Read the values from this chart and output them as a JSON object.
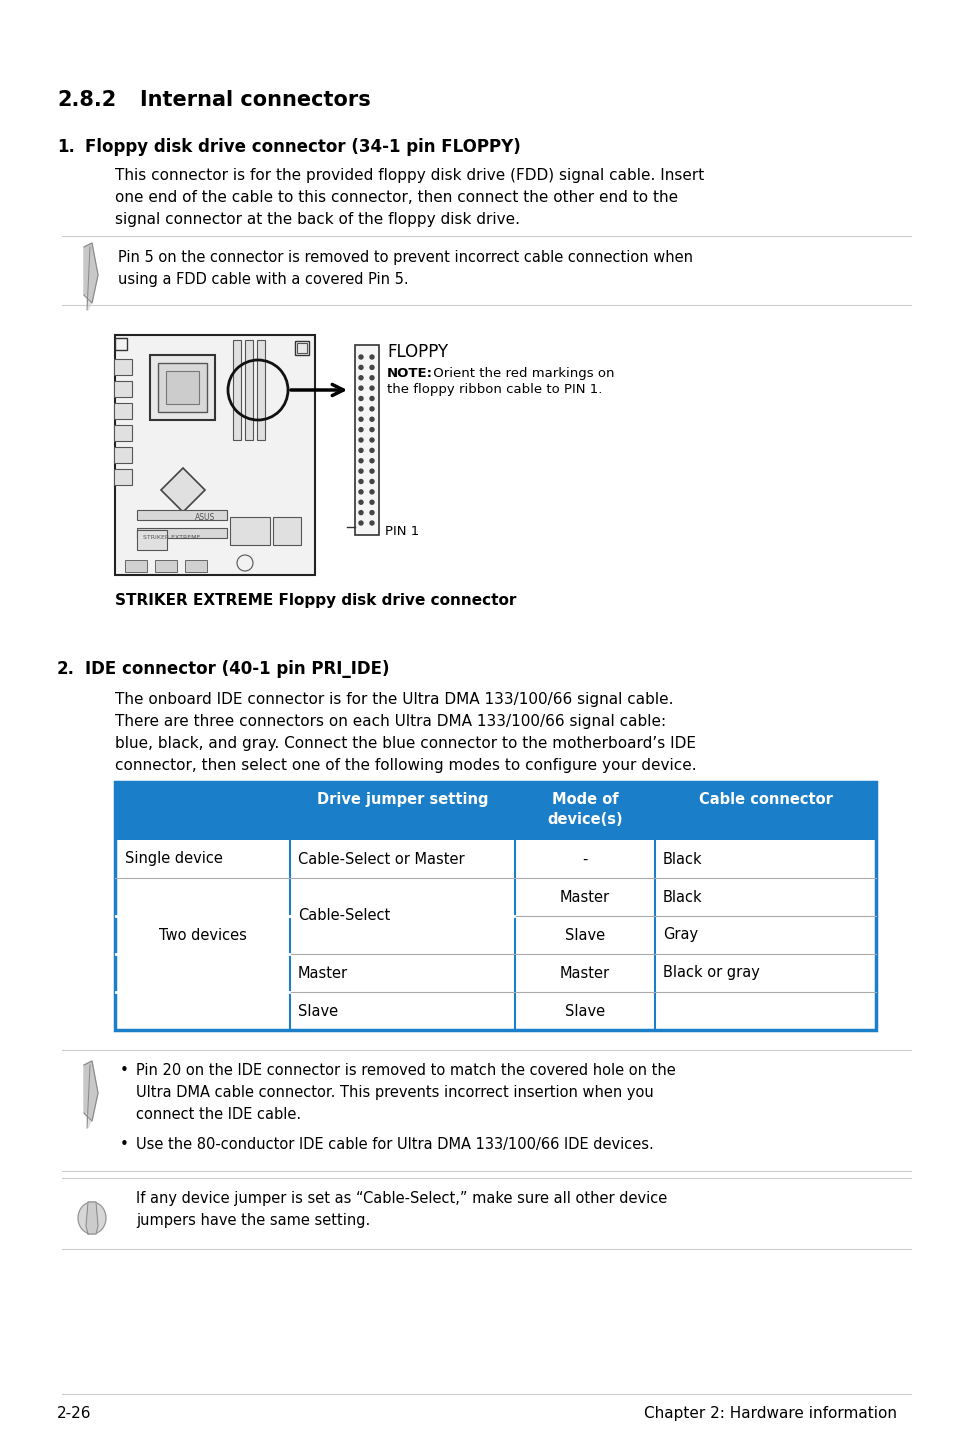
{
  "bg_color": "#ffffff",
  "section_title_num": "2.8.2",
  "section_title_text": "Internal connectors",
  "item1_num": "1.",
  "item1_title": "Floppy disk drive connector (34-1 pin FLOPPY)",
  "item1_body_lines": [
    "This connector is for the provided floppy disk drive (FDD) signal cable. Insert",
    "one end of the cable to this connector, then connect the other end to the",
    "signal connector at the back of the floppy disk drive."
  ],
  "note1_text_lines": [
    "Pin 5 on the connector is removed to prevent incorrect cable connection when",
    "using a FDD cable with a covered Pin 5."
  ],
  "diagram_label": "FLOPPY",
  "diagram_note_bold": "NOTE:",
  "diagram_note_text": " Orient the red markings on",
  "diagram_note_text2": "the floppy ribbon cable to PIN 1.",
  "diagram_pin1": "PIN 1",
  "diagram_caption": "STRIKER EXTREME Floppy disk drive connector",
  "item2_num": "2.",
  "item2_title": "IDE connector (40-1 pin PRI_IDE)",
  "item2_body_lines": [
    "The onboard IDE connector is for the Ultra DMA 133/100/66 signal cable.",
    "There are three connectors on each Ultra DMA 133/100/66 signal cable:",
    "blue, black, and gray. Connect the blue connector to the motherboard’s IDE",
    "connector, then select one of the following modes to configure your device."
  ],
  "table_header_bg": "#1a7ec8",
  "table_border_color": "#1a7ec8",
  "table_headers": [
    "Drive jumper setting",
    "Mode of\ndevice(s)",
    "Cable connector"
  ],
  "table_row_data": [
    [
      "Single device",
      "Cable-Select or Master",
      "-",
      "Black"
    ],
    [
      "Two devices",
      "Cable-Select",
      "Master",
      "Black"
    ],
    [
      "",
      "",
      "Slave",
      "Gray"
    ],
    [
      "",
      "Master",
      "Master",
      "Black or gray"
    ],
    [
      "",
      "Slave",
      "Slave",
      ""
    ]
  ],
  "note2_bullet1_lines": [
    "Pin 20 on the IDE connector is removed to match the covered hole on the",
    "Ultra DMA cable connector. This prevents incorrect insertion when you",
    "connect the IDE cable."
  ],
  "note2_bullet2": "Use the 80-conductor IDE cable for Ultra DMA 133/100/66 IDE devices.",
  "note3_text_lines": [
    "If any device jumper is set as “Cable-Select,” make sure all other device",
    "jumpers have the same setting."
  ],
  "footer_left": "2-26",
  "footer_right": "Chapter 2: Hardware information",
  "line_color": "#cccccc",
  "sep_color": "#aaaaaa",
  "text_color": "#000000",
  "header_text_color": "#ffffff"
}
